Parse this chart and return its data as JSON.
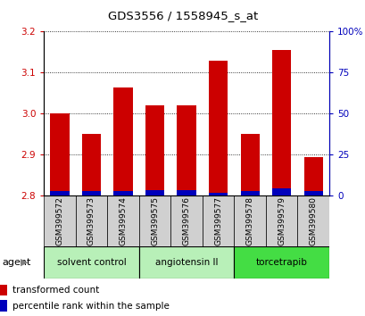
{
  "title": "GDS3556 / 1558945_s_at",
  "samples": [
    "GSM399572",
    "GSM399573",
    "GSM399574",
    "GSM399575",
    "GSM399576",
    "GSM399577",
    "GSM399578",
    "GSM399579",
    "GSM399580"
  ],
  "transformed_count": [
    3.0,
    2.95,
    3.065,
    3.02,
    3.02,
    3.13,
    2.95,
    3.155,
    2.895
  ],
  "percentile_rank": [
    3.0,
    3.0,
    3.0,
    3.5,
    3.5,
    2.0,
    3.0,
    4.5,
    3.0
  ],
  "bar_bottom": 2.8,
  "ylim": [
    2.8,
    3.2
  ],
  "right_ylim": [
    0,
    100
  ],
  "yticks_left": [
    2.8,
    2.9,
    3.0,
    3.1,
    3.2
  ],
  "yticks_right": [
    0,
    25,
    50,
    75,
    100
  ],
  "red_color": "#cc0000",
  "blue_color": "#0000bb",
  "groups": [
    {
      "label": "solvent control",
      "start": 0,
      "end": 3,
      "color": "#b8f0b8"
    },
    {
      "label": "angiotensin II",
      "start": 3,
      "end": 6,
      "color": "#b8f0b8"
    },
    {
      "label": "torcetrapib",
      "start": 6,
      "end": 9,
      "color": "#44dd44"
    }
  ],
  "agent_label": "agent",
  "legend_red": "transformed count",
  "legend_blue": "percentile rank within the sample",
  "sample_bg": "#d0d0d0",
  "group_border": "#000000"
}
